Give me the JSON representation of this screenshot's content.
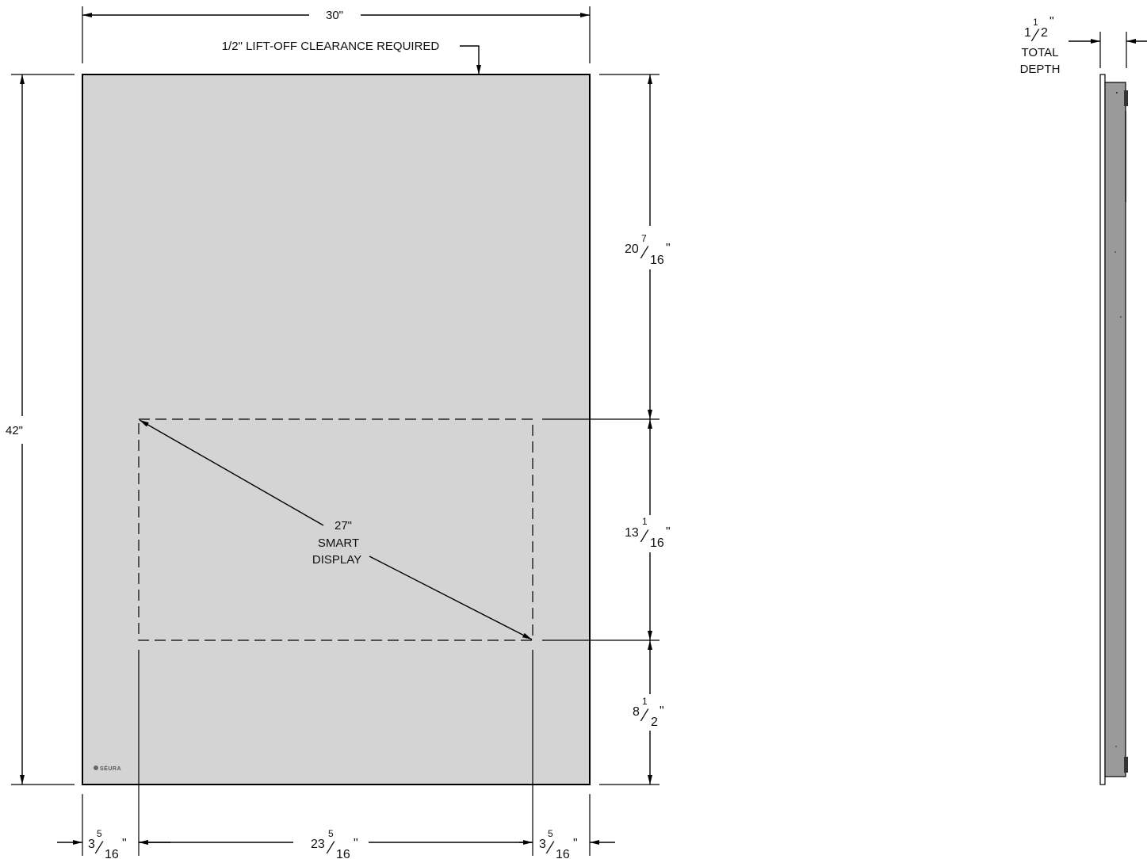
{
  "colors": {
    "panel": "#d4d4d4",
    "side_body": "#9a9a9a",
    "line": "#000000"
  },
  "dimensions": {
    "width": "30\"",
    "height": "42\"",
    "clearance_note": "1/2\" LIFT-OFF CLEARANCE REQUIRED",
    "top_to_display": {
      "whole": "20",
      "num": "7",
      "den": "16",
      "unit": "\""
    },
    "display_height": {
      "whole": "13",
      "num": "1",
      "den": "16",
      "unit": "\""
    },
    "display_to_bottom": {
      "whole": "8",
      "num": "1",
      "den": "2",
      "unit": "\""
    },
    "left_margin": {
      "whole": "3",
      "num": "5",
      "den": "16",
      "unit": "\""
    },
    "display_width": {
      "whole": "23",
      "num": "5",
      "den": "16",
      "unit": "\""
    },
    "right_margin": {
      "whole": "3",
      "num": "5",
      "den": "16",
      "unit": "\""
    },
    "total_depth": {
      "whole": "1",
      "num": "1",
      "den": "2",
      "unit": "\""
    },
    "total_depth_label_line1": "TOTAL",
    "total_depth_label_line2": "DEPTH"
  },
  "display": {
    "size": "27\"",
    "line1": "SMART",
    "line2": "DISPLAY"
  },
  "logo": {
    "text": "SÉURA",
    "icon": "seura-dot-icon"
  }
}
